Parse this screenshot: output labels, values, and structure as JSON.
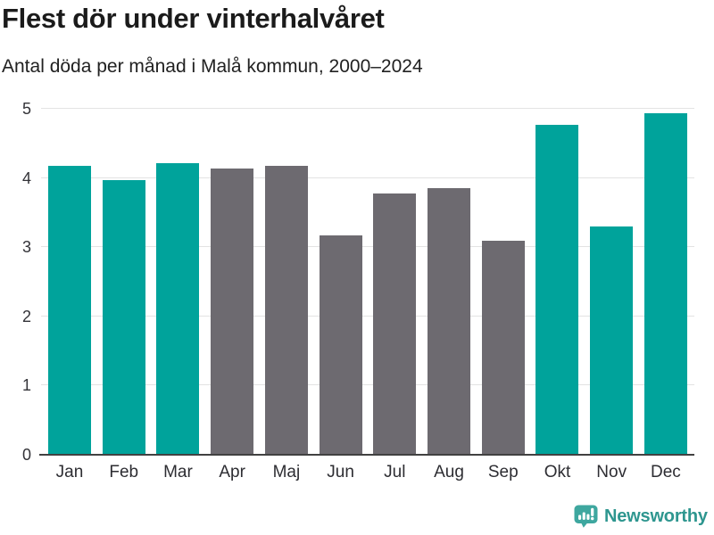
{
  "page": {
    "title": "Flest dör under vinterhalvåret",
    "subtitle": "Antal döda per månad i Malå kommun, 2000–2024"
  },
  "chart_data": {
    "type": "bar",
    "title": "Flest dör under vinterhalvåret",
    "subtitle": "Antal döda per månad i Malå kommun, 2000–2024",
    "categories": [
      "Jan",
      "Feb",
      "Mar",
      "Apr",
      "Maj",
      "Jun",
      "Jul",
      "Aug",
      "Sep",
      "Okt",
      "Nov",
      "Dec"
    ],
    "values": [
      4.16,
      3.96,
      4.2,
      4.12,
      4.16,
      3.16,
      3.76,
      3.84,
      3.08,
      4.76,
      3.28,
      4.92
    ],
    "bar_colors": [
      "#00a39b",
      "#00a39b",
      "#00a39b",
      "#6d6a70",
      "#6d6a70",
      "#6d6a70",
      "#6d6a70",
      "#6d6a70",
      "#6d6a70",
      "#00a39b",
      "#00a39b",
      "#00a39b"
    ],
    "highlight_color": "#00a39b",
    "base_color": "#6d6a70",
    "xlabel": "",
    "ylabel": "",
    "ylim": [
      0,
      5
    ],
    "yticks": [
      0,
      1,
      2,
      3,
      4,
      5
    ],
    "grid": true,
    "legend_position": "none",
    "gridline_color": "#e3e3e3",
    "axis_line_color": "#414141"
  },
  "footer": {
    "brand": "Newsworthy",
    "brand_color": "#2e968f",
    "brand_icon": "newsworthy-speech-bubble-barchart-icon",
    "brand_icon_color": "#3ea79f"
  }
}
